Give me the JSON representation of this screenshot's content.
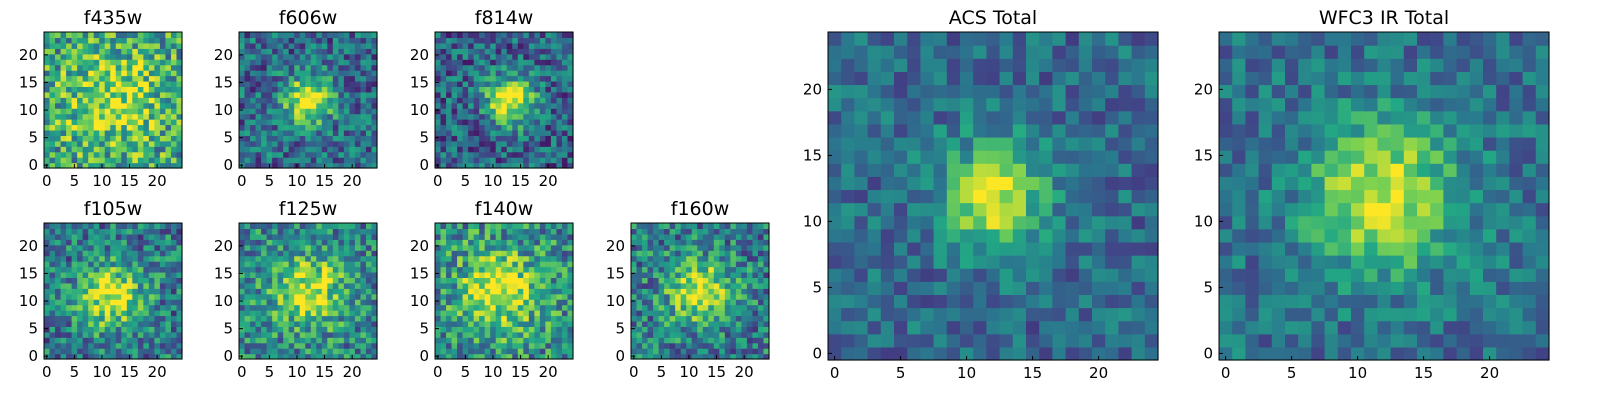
{
  "colormap": {
    "name": "viridis",
    "stops": [
      "#440154",
      "#414487",
      "#2a788e",
      "#22a884",
      "#7ad151",
      "#fde725"
    ]
  },
  "chart_data": [
    {
      "type": "heatmap",
      "title": "f435w",
      "grid_size": 25,
      "x_ticks": [
        "0",
        "5",
        "10",
        "15",
        "20"
      ],
      "y_ticks": [
        "0",
        "5",
        "10",
        "15",
        "20"
      ],
      "peak": {
        "x": 12,
        "y": 12
      },
      "peak_strength": 0.3,
      "sigma": 6,
      "noise": 0.32,
      "baseline": 0.58
    },
    {
      "type": "heatmap",
      "title": "f606w",
      "grid_size": 25,
      "x_ticks": [
        "0",
        "5",
        "10",
        "15",
        "20"
      ],
      "y_ticks": [
        "0",
        "5",
        "10",
        "15",
        "20"
      ],
      "peak": {
        "x": 12,
        "y": 12
      },
      "peak_strength": 0.7,
      "sigma": 3,
      "noise": 0.26,
      "baseline": 0.35
    },
    {
      "type": "heatmap",
      "title": "f814w",
      "grid_size": 25,
      "x_ticks": [
        "0",
        "5",
        "10",
        "15",
        "20"
      ],
      "y_ticks": [
        "0",
        "5",
        "10",
        "15",
        "20"
      ],
      "peak": {
        "x": 13,
        "y": 12
      },
      "peak_strength": 0.75,
      "sigma": 3,
      "noise": 0.26,
      "baseline": 0.32
    },
    {
      "type": "heatmap",
      "title": "f105w",
      "grid_size": 25,
      "x_ticks": [
        "0",
        "5",
        "10",
        "15",
        "20"
      ],
      "y_ticks": [
        "0",
        "5",
        "10",
        "15",
        "20"
      ],
      "peak": {
        "x": 12,
        "y": 11
      },
      "peak_strength": 0.6,
      "sigma": 4,
      "noise": 0.28,
      "baseline": 0.4
    },
    {
      "type": "heatmap",
      "title": "f125w",
      "grid_size": 25,
      "x_ticks": [
        "0",
        "5",
        "10",
        "15",
        "20"
      ],
      "y_ticks": [
        "0",
        "5",
        "10",
        "15",
        "20"
      ],
      "peak": {
        "x": 12,
        "y": 12
      },
      "peak_strength": 0.5,
      "sigma": 4.5,
      "noise": 0.28,
      "baseline": 0.45
    },
    {
      "type": "heatmap",
      "title": "f140w",
      "grid_size": 25,
      "x_ticks": [
        "0",
        "5",
        "10",
        "15",
        "20"
      ],
      "y_ticks": [
        "0",
        "5",
        "10",
        "15",
        "20"
      ],
      "peak": {
        "x": 11,
        "y": 12
      },
      "peak_strength": 0.5,
      "sigma": 5,
      "noise": 0.3,
      "baseline": 0.48
    },
    {
      "type": "heatmap",
      "title": "f160w",
      "grid_size": 25,
      "x_ticks": [
        "0",
        "5",
        "10",
        "15",
        "20"
      ],
      "y_ticks": [
        "0",
        "5",
        "10",
        "15",
        "20"
      ],
      "peak": {
        "x": 12,
        "y": 12
      },
      "peak_strength": 0.55,
      "sigma": 4,
      "noise": 0.28,
      "baseline": 0.42
    },
    {
      "type": "heatmap",
      "title": "ACS Total",
      "grid_size": 25,
      "x_ticks": [
        "0",
        "5",
        "10",
        "15",
        "20"
      ],
      "y_ticks": [
        "0",
        "5",
        "10",
        "15",
        "20"
      ],
      "peak": {
        "x": 12,
        "y": 12
      },
      "peak_strength": 0.62,
      "sigma": 2.8,
      "noise": 0.18,
      "baseline": 0.35
    },
    {
      "type": "heatmap",
      "title": "WFC3 IR Total",
      "grid_size": 25,
      "x_ticks": [
        "0",
        "5",
        "10",
        "15",
        "20"
      ],
      "y_ticks": [
        "0",
        "5",
        "10",
        "15",
        "20"
      ],
      "peak": {
        "x": 12,
        "y": 12
      },
      "peak_strength": 0.6,
      "sigma": 3.8,
      "noise": 0.18,
      "baseline": 0.37
    }
  ]
}
